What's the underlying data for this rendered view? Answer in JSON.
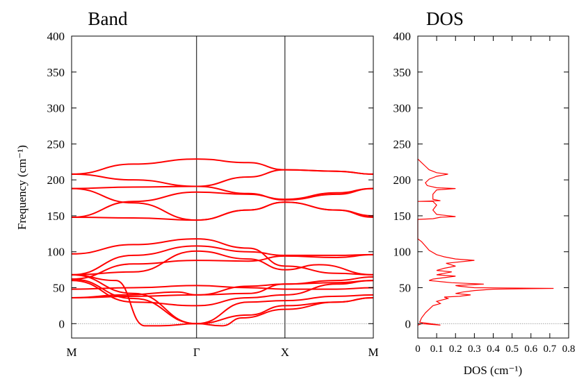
{
  "chart_data": [
    {
      "type": "line",
      "title": "Band",
      "ylabel": "Frequency (cm⁻¹)",
      "ylim": [
        -20,
        400
      ],
      "yticks": [
        0,
        50,
        100,
        150,
        200,
        250,
        300,
        350,
        400
      ],
      "x_path_labels": [
        "M",
        "Γ",
        "X",
        "M"
      ],
      "x_path_positions": [
        0,
        1.414,
        2.414,
        3.414
      ],
      "grid": false,
      "zero_line": true,
      "color": "#ff0000",
      "bands": [
        [
          [
            0,
            36
          ],
          [
            0.6,
            40
          ],
          [
            1.2,
            44
          ],
          [
            1.414,
            40
          ],
          [
            2.0,
            52
          ],
          [
            2.414,
            55
          ],
          [
            3.0,
            57
          ],
          [
            3.414,
            60
          ]
        ],
        [
          [
            0,
            48
          ],
          [
            0.7,
            50
          ],
          [
            1.414,
            53
          ],
          [
            2.0,
            50
          ],
          [
            2.414,
            48
          ],
          [
            3.0,
            48
          ],
          [
            3.414,
            50
          ]
        ],
        [
          [
            0,
            62
          ],
          [
            0.7,
            83
          ],
          [
            1.414,
            88
          ],
          [
            2.0,
            87
          ],
          [
            2.414,
            94
          ],
          [
            3.0,
            92
          ],
          [
            3.414,
            96
          ]
        ],
        [
          [
            0,
            68
          ],
          [
            0.7,
            72
          ],
          [
            1.414,
            101
          ],
          [
            2.0,
            90
          ],
          [
            2.414,
            75
          ],
          [
            2.8,
            82
          ],
          [
            3.414,
            68
          ]
        ],
        [
          [
            0,
            68
          ],
          [
            0.7,
            95
          ],
          [
            1.414,
            108
          ],
          [
            2.0,
            100
          ],
          [
            2.414,
            95
          ],
          [
            3.0,
            95
          ],
          [
            3.414,
            96
          ]
        ],
        [
          [
            0,
            97
          ],
          [
            0.7,
            110
          ],
          [
            1.414,
            118
          ],
          [
            2.0,
            105
          ],
          [
            2.414,
            80
          ],
          [
            3.0,
            70
          ],
          [
            3.414,
            68
          ]
        ],
        [
          [
            0,
            148
          ],
          [
            0.7,
            147
          ],
          [
            1.414,
            144
          ],
          [
            2.0,
            158
          ],
          [
            2.414,
            169
          ],
          [
            3.0,
            158
          ],
          [
            3.414,
            148
          ]
        ],
        [
          [
            0,
            148
          ],
          [
            0.7,
            170
          ],
          [
            1.414,
            183
          ],
          [
            2.0,
            180
          ],
          [
            2.414,
            173
          ],
          [
            3.0,
            182
          ],
          [
            3.414,
            188
          ]
        ],
        [
          [
            0,
            188
          ],
          [
            0.7,
            168
          ],
          [
            1.414,
            144
          ],
          [
            2.0,
            158
          ],
          [
            2.414,
            169
          ],
          [
            3.0,
            158
          ],
          [
            3.414,
            150
          ]
        ],
        [
          [
            0,
            188
          ],
          [
            0.7,
            190
          ],
          [
            1.414,
            191
          ],
          [
            2.0,
            181
          ],
          [
            2.414,
            172
          ],
          [
            3.0,
            180
          ],
          [
            3.414,
            188
          ]
        ],
        [
          [
            0,
            208
          ],
          [
            0.7,
            222
          ],
          [
            1.414,
            229
          ],
          [
            2.0,
            224
          ],
          [
            2.414,
            214
          ],
          [
            3.0,
            212
          ],
          [
            3.414,
            208
          ]
        ],
        [
          [
            0,
            208
          ],
          [
            0.7,
            200
          ],
          [
            1.414,
            191
          ],
          [
            2.0,
            204
          ],
          [
            2.414,
            214
          ],
          [
            3.0,
            212
          ],
          [
            3.414,
            208
          ]
        ],
        [
          [
            0,
            68
          ],
          [
            0.5,
            60
          ],
          [
            0.83,
            -3
          ],
          [
            1.0,
            -3
          ],
          [
            1.414,
            0
          ],
          [
            1.7,
            -3
          ],
          [
            1.93,
            8
          ],
          [
            2.414,
            20
          ],
          [
            3.0,
            30
          ],
          [
            3.414,
            36
          ]
        ],
        [
          [
            0,
            62
          ],
          [
            0.7,
            35
          ],
          [
            1.414,
            0
          ],
          [
            2.0,
            12
          ],
          [
            2.414,
            25
          ],
          [
            3.0,
            30
          ],
          [
            3.414,
            36
          ]
        ],
        [
          [
            0,
            68
          ],
          [
            0.7,
            42
          ],
          [
            1.414,
            0
          ],
          [
            2.0,
            30
          ],
          [
            2.414,
            32
          ],
          [
            3.0,
            38
          ],
          [
            3.414,
            40
          ]
        ],
        [
          [
            0,
            60
          ],
          [
            0.7,
            30
          ],
          [
            1.414,
            25
          ],
          [
            2.0,
            36
          ],
          [
            2.414,
            40
          ],
          [
            3.0,
            55
          ],
          [
            3.414,
            60
          ]
        ],
        [
          [
            0,
            36
          ],
          [
            0.7,
            38
          ],
          [
            1.414,
            40
          ],
          [
            2.0,
            42
          ],
          [
            2.414,
            55
          ],
          [
            3.0,
            60
          ],
          [
            3.414,
            65
          ]
        ]
      ]
    },
    {
      "type": "line",
      "title": "DOS",
      "xlabel": "DOS (cm⁻¹)",
      "xlim": [
        0,
        0.8
      ],
      "xticks": [
        "0",
        "0.1",
        "0.2",
        "0.3",
        "0.4",
        "0.5",
        "0.6",
        "0.7",
        "0.8"
      ],
      "ylim": [
        -20,
        400
      ],
      "yticks": [
        0,
        50,
        100,
        150,
        200,
        250,
        300,
        350,
        400
      ],
      "grid": false,
      "zero_line": true,
      "color": "#ff0000",
      "points": [
        [
          0.0,
          -2
        ],
        [
          0.02,
          0
        ],
        [
          0.12,
          -2
        ],
        [
          0.01,
          2
        ],
        [
          0.02,
          8
        ],
        [
          0.04,
          15
        ],
        [
          0.08,
          25
        ],
        [
          0.12,
          28
        ],
        [
          0.1,
          31
        ],
        [
          0.16,
          35
        ],
        [
          0.14,
          37
        ],
        [
          0.22,
          38
        ],
        [
          0.28,
          40
        ],
        [
          0.2,
          42
        ],
        [
          0.24,
          44
        ],
        [
          0.3,
          46
        ],
        [
          0.4,
          48
        ],
        [
          0.72,
          49
        ],
        [
          0.3,
          50
        ],
        [
          0.22,
          52
        ],
        [
          0.2,
          53
        ],
        [
          0.35,
          55
        ],
        [
          0.18,
          57
        ],
        [
          0.1,
          59
        ],
        [
          0.06,
          60
        ],
        [
          0.08,
          62
        ],
        [
          0.14,
          64
        ],
        [
          0.2,
          66
        ],
        [
          0.1,
          68
        ],
        [
          0.14,
          70
        ],
        [
          0.18,
          72
        ],
        [
          0.1,
          74
        ],
        [
          0.14,
          77
        ],
        [
          0.2,
          80
        ],
        [
          0.15,
          84
        ],
        [
          0.3,
          88
        ],
        [
          0.2,
          90
        ],
        [
          0.14,
          93
        ],
        [
          0.1,
          96
        ],
        [
          0.06,
          102
        ],
        [
          0.04,
          108
        ],
        [
          0.02,
          114
        ],
        [
          0.0,
          118
        ],
        [
          0.0,
          145
        ],
        [
          0.08,
          146
        ],
        [
          0.12,
          148
        ],
        [
          0.2,
          149
        ],
        [
          0.1,
          152
        ],
        [
          0.08,
          158
        ],
        [
          0.1,
          165
        ],
        [
          0.08,
          170
        ],
        [
          0.0,
          170
        ],
        [
          0.12,
          171
        ],
        [
          0.08,
          173
        ],
        [
          0.08,
          180
        ],
        [
          0.1,
          186
        ],
        [
          0.2,
          188
        ],
        [
          0.1,
          189
        ],
        [
          0.05,
          192
        ],
        [
          0.04,
          196
        ],
        [
          0.06,
          201
        ],
        [
          0.1,
          205
        ],
        [
          0.16,
          208
        ],
        [
          0.1,
          210
        ],
        [
          0.06,
          214
        ],
        [
          0.04,
          219
        ],
        [
          0.02,
          224
        ],
        [
          0.0,
          229
        ]
      ]
    }
  ]
}
